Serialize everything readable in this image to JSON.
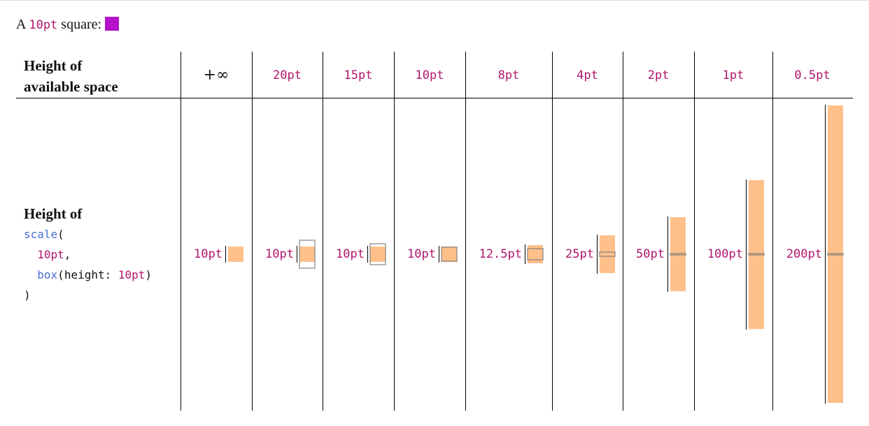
{
  "intro": {
    "text_before": "A",
    "code": "10pt",
    "text_after": "square:",
    "square_color": "#b312c9"
  },
  "table": {
    "header_label": [
      "Height of",
      "available space"
    ],
    "columns": [
      "+∞",
      "20pt",
      "15pt",
      "10pt",
      "8pt",
      "4pt",
      "2pt",
      "1pt",
      "0.5pt"
    ],
    "row_label": "Height of",
    "code": {
      "fn": "scale",
      "open_paren": "(",
      "arg1": "10pt",
      "comma": ",",
      "box_fn": "box",
      "box_open": "(",
      "box_param": "height: ",
      "box_value": "10pt",
      "box_close": ")",
      "close_paren": ")"
    },
    "results": [
      "10pt",
      "10pt",
      "10pt",
      "10pt",
      "12.5pt",
      "25pt",
      "50pt",
      "100pt",
      "200pt"
    ],
    "colors": {
      "bar": "#ffc08a",
      "code_value": "#b0156d",
      "code_function": "#4a6fd0"
    }
  }
}
